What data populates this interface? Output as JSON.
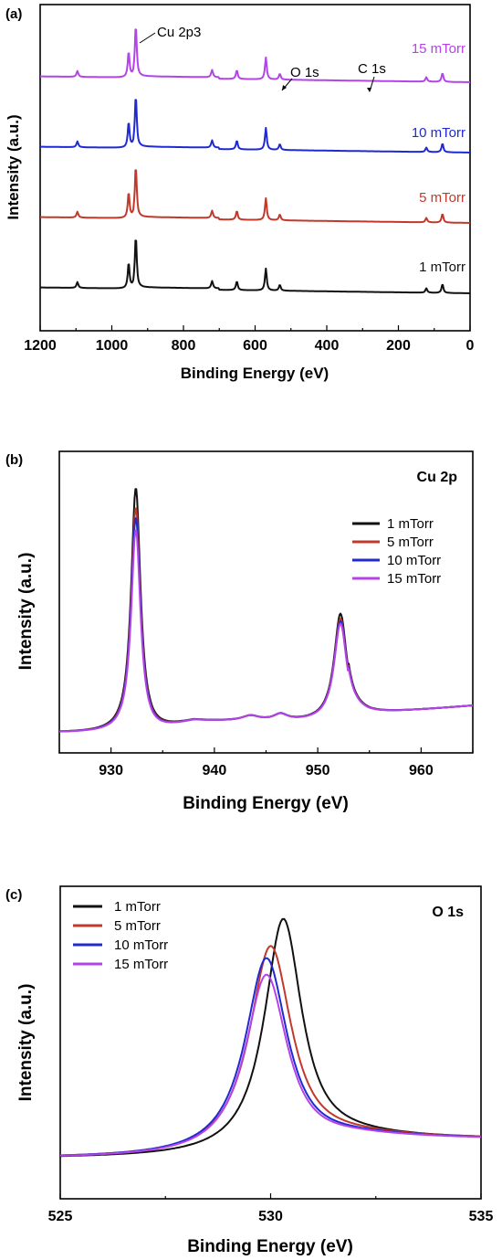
{
  "colors": {
    "s1": "#111111",
    "s5": "#c0392b",
    "s10": "#1f2ad1",
    "s15": "#b444e8"
  },
  "chart_data": [
    {
      "panel": "(a)",
      "type": "line",
      "xlabel": "Binding Energy (eV)",
      "ylabel": "Intensity (a.u.)",
      "xlim": [
        1200,
        0
      ],
      "xticks": [
        "1200",
        "1000",
        "800",
        "600",
        "400",
        "200",
        "0"
      ],
      "xtick_values": [
        1200,
        1000,
        800,
        600,
        400,
        200,
        0
      ],
      "annotations": [
        {
          "text": "Cu 2p3",
          "x": 933
        },
        {
          "text": "O 1s",
          "x": 531
        },
        {
          "text": "C 1s",
          "x": 285
        }
      ],
      "series": [
        {
          "name": "1 mTorr",
          "offset": 0.0
        },
        {
          "name": "5 mTorr",
          "offset": 1.0
        },
        {
          "name": "10 mTorr",
          "offset": 2.0
        },
        {
          "name": "15 mTorr",
          "offset": 3.0
        }
      ],
      "peaks": [
        {
          "x": 1096,
          "h": 0.08
        },
        {
          "x": 953,
          "h": 0.35
        },
        {
          "x": 933,
          "h": 0.7
        },
        {
          "x": 720,
          "h": 0.1
        },
        {
          "x": 651,
          "h": 0.12
        },
        {
          "x": 570,
          "h": 0.3
        },
        {
          "x": 531,
          "h": 0.08
        },
        {
          "x": 122,
          "h": 0.06
        },
        {
          "x": 77,
          "h": 0.12
        }
      ]
    },
    {
      "panel": "(b)",
      "type": "line",
      "title": "Cu 2p",
      "xlabel": "Binding Energy (eV)",
      "ylabel": "Intensity (a.u.)",
      "xlim": [
        925,
        965
      ],
      "xticks": [
        "930",
        "940",
        "950",
        "960"
      ],
      "xtick_values": [
        930,
        940,
        950,
        960
      ],
      "legend": "top-right",
      "series": [
        {
          "name": "1 mTorr",
          "peak1": 1.0,
          "peak2": 0.44
        },
        {
          "name": "5 mTorr",
          "peak1": 0.92,
          "peak2": 0.42
        },
        {
          "name": "10 mTorr",
          "peak1": 0.88,
          "peak2": 0.41
        },
        {
          "name": "15 mTorr",
          "peak1": 0.83,
          "peak2": 0.4
        }
      ]
    },
    {
      "panel": "(c)",
      "type": "line",
      "title": "O 1s",
      "xlabel": "Binding Energy (eV)",
      "ylabel": "Intensity (a.u.)",
      "xlim": [
        525,
        535
      ],
      "xticks": [
        "525",
        "530",
        "535"
      ],
      "xtick_values": [
        525,
        530,
        535
      ],
      "legend": "top-left",
      "series": [
        {
          "name": "1 mTorr",
          "center": 530.3,
          "height": 1.0
        },
        {
          "name": "5 mTorr",
          "center": 530.0,
          "height": 0.89
        },
        {
          "name": "10 mTorr",
          "center": 529.9,
          "height": 0.84
        },
        {
          "name": "15 mTorr",
          "center": 529.9,
          "height": 0.77
        }
      ]
    }
  ]
}
